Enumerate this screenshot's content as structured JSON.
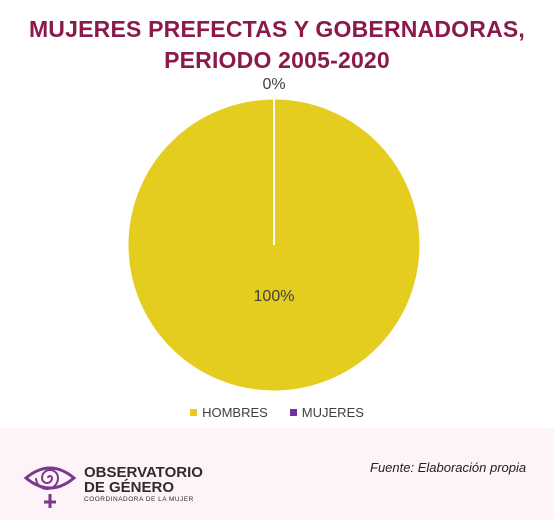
{
  "title_line1": "MUJERES PREFECTAS Y GOBERNADORAS,",
  "title_line2": "PERIODO 2005-2020",
  "chart_data": {
    "type": "pie",
    "title": "MUJERES PREFECTAS Y GOBERNADORAS, PERIODO 2005-2020",
    "categories": [
      "HOMBRES",
      "MUJERES"
    ],
    "values": [
      100,
      0
    ],
    "data_labels": [
      "100%",
      "0%"
    ],
    "colors": [
      "#e4cd1f",
      "#7030a0"
    ],
    "legend_position": "bottom"
  },
  "legend": [
    {
      "label": "HOMBRES",
      "color": "#e4cd1f"
    },
    {
      "label": "MUJERES",
      "color": "#7030a0"
    }
  ],
  "logo": {
    "line1": "OBSERVATORIO",
    "line2": "DE GÉNERO",
    "line3": "COORDINADORA DE LA MUJER",
    "icon": "eye-spiral-venus-icon",
    "color": "#7a3a8c"
  },
  "source": "Fuente: Elaboración propia"
}
